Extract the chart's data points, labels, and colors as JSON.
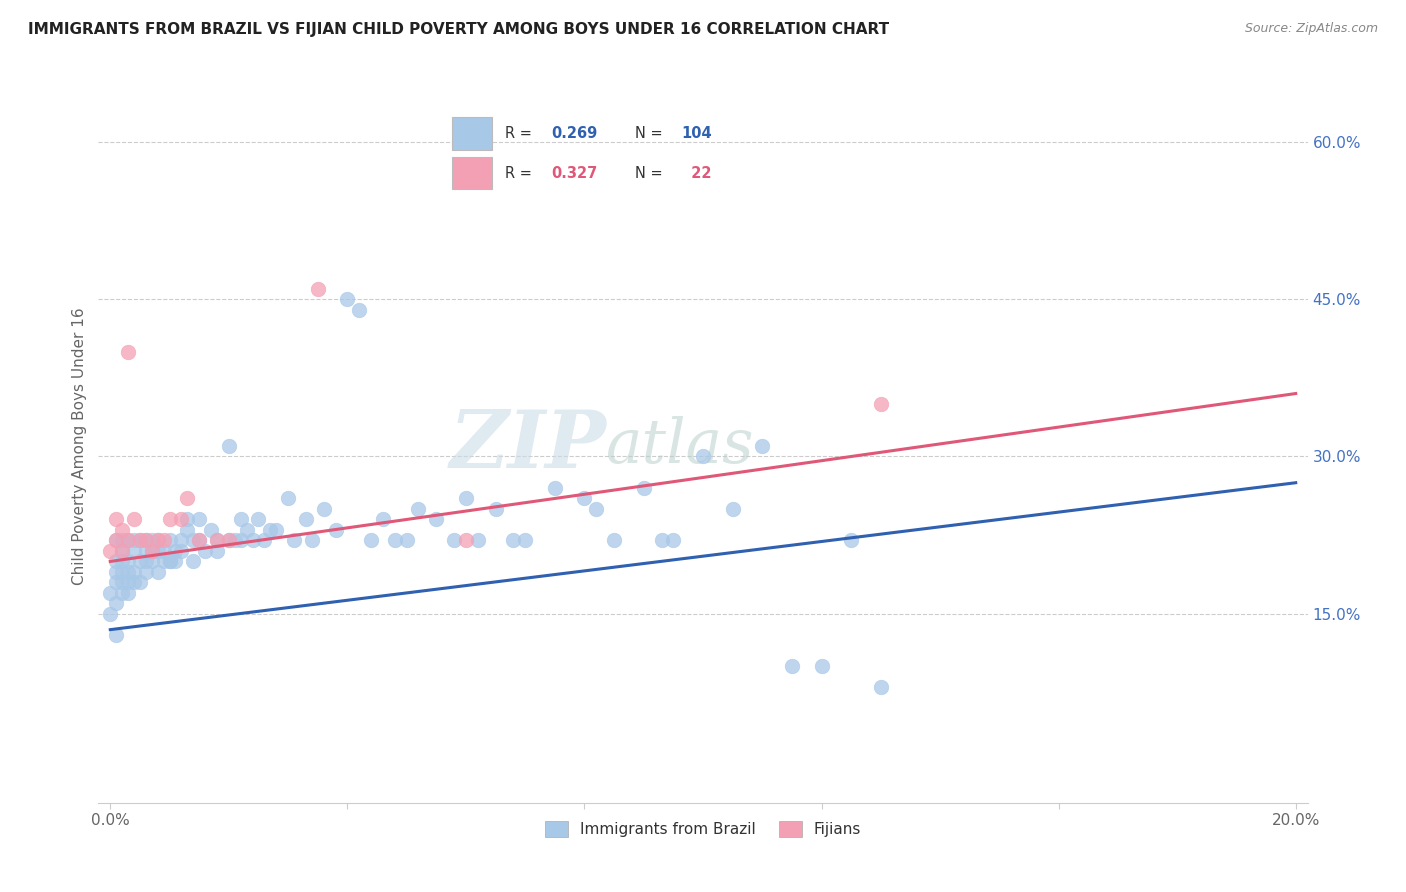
{
  "title": "IMMIGRANTS FROM BRAZIL VS FIJIAN CHILD POVERTY AMONG BOYS UNDER 16 CORRELATION CHART",
  "source": "Source: ZipAtlas.com",
  "ylabel": "Child Poverty Among Boys Under 16",
  "xlim": [
    0.0,
    0.2
  ],
  "ylim": [
    -0.03,
    0.65
  ],
  "xticks": [
    0.0,
    0.04,
    0.08,
    0.12,
    0.16,
    0.2
  ],
  "xtick_labels": [
    "0.0%",
    "",
    "",
    "",
    "",
    "20.0%"
  ],
  "yticks_right": [
    0.15,
    0.3,
    0.45,
    0.6
  ],
  "ytick_right_labels": [
    "15.0%",
    "30.0%",
    "45.0%",
    "60.0%"
  ],
  "blue_color": "#a8c8e8",
  "pink_color": "#f4a0b4",
  "blue_line_color": "#3060b0",
  "pink_line_color": "#e05878",
  "right_tick_color": "#4472c4",
  "watermark_zip_color": "#dce8f4",
  "watermark_atlas_color": "#c8dcea",
  "brazil_trend_y0": 0.135,
  "brazil_trend_y1": 0.275,
  "fijian_trend_y0": 0.2,
  "fijian_trend_y1": 0.36,
  "brazil_x": [
    0.0,
    0.0,
    0.001,
    0.001,
    0.001,
    0.001,
    0.001,
    0.002,
    0.002,
    0.002,
    0.002,
    0.002,
    0.002,
    0.002,
    0.003,
    0.003,
    0.003,
    0.003,
    0.003,
    0.004,
    0.004,
    0.004,
    0.004,
    0.004,
    0.005,
    0.005,
    0.005,
    0.005,
    0.006,
    0.006,
    0.006,
    0.006,
    0.006,
    0.007,
    0.007,
    0.007,
    0.007,
    0.008,
    0.008,
    0.008,
    0.008,
    0.009,
    0.009,
    0.009,
    0.01,
    0.01,
    0.01,
    0.01,
    0.011,
    0.011,
    0.012,
    0.012,
    0.012,
    0.013,
    0.013,
    0.013,
    0.014,
    0.014,
    0.014,
    0.015,
    0.015,
    0.016,
    0.016,
    0.017,
    0.017,
    0.018,
    0.018,
    0.019,
    0.02,
    0.02,
    0.021,
    0.022,
    0.022,
    0.023,
    0.024,
    0.025,
    0.026,
    0.027,
    0.028,
    0.03,
    0.031,
    0.033,
    0.035,
    0.037,
    0.04,
    0.042,
    0.045,
    0.048,
    0.052,
    0.055,
    0.06,
    0.065,
    0.07,
    0.075,
    0.08,
    0.085,
    0.09,
    0.095,
    0.1,
    0.105,
    0.11,
    0.115,
    0.12,
    0.13
  ],
  "brazil_y": [
    0.14,
    0.15,
    0.13,
    0.16,
    0.17,
    0.19,
    0.2,
    0.16,
    0.18,
    0.19,
    0.2,
    0.21,
    0.22,
    0.17,
    0.17,
    0.18,
    0.2,
    0.21,
    0.19,
    0.18,
    0.19,
    0.2,
    0.22,
    0.17,
    0.21,
    0.2,
    0.18,
    0.23,
    0.19,
    0.2,
    0.22,
    0.21,
    0.18,
    0.2,
    0.21,
    0.22,
    0.19,
    0.21,
    0.22,
    0.2,
    0.18,
    0.2,
    0.21,
    0.19,
    0.22,
    0.2,
    0.18,
    0.17,
    0.2,
    0.21,
    0.22,
    0.2,
    0.21,
    0.21,
    0.22,
    0.23,
    0.19,
    0.21,
    0.2,
    0.22,
    0.23,
    0.21,
    0.2,
    0.2,
    0.22,
    0.21,
    0.24,
    0.23,
    0.23,
    0.24,
    0.22,
    0.22,
    0.24,
    0.23,
    0.21,
    0.24,
    0.22,
    0.23,
    0.23,
    0.26,
    0.24,
    0.22,
    0.24,
    0.25,
    0.45,
    0.44,
    0.25,
    0.24,
    0.27,
    0.3,
    0.31,
    0.26,
    0.22,
    0.27,
    0.26,
    0.22,
    0.25,
    0.28,
    0.3,
    0.25,
    0.31,
    0.1,
    0.1,
    0.08
  ],
  "fijian_x": [
    0.0,
    0.001,
    0.001,
    0.002,
    0.002,
    0.003,
    0.003,
    0.004,
    0.005,
    0.005,
    0.006,
    0.007,
    0.008,
    0.009,
    0.01,
    0.012,
    0.013,
    0.015,
    0.018,
    0.02,
    0.055,
    0.13
  ],
  "fijian_y": [
    0.2,
    0.21,
    0.22,
    0.2,
    0.24,
    0.22,
    0.39,
    0.23,
    0.21,
    0.24,
    0.22,
    0.21,
    0.24,
    0.22,
    0.24,
    0.23,
    0.25,
    0.22,
    0.22,
    0.22,
    0.46,
    0.35
  ]
}
